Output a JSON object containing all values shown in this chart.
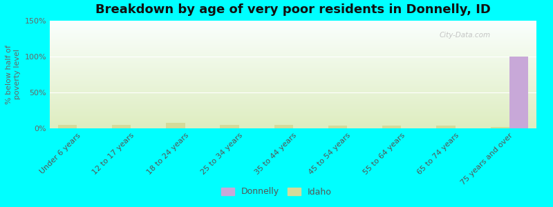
{
  "title": "Breakdown by age of very poor residents in Donnelly, ID",
  "ylabel": "% below half of\npoverty level",
  "categories": [
    "Under 6 years",
    "12 to 17 years",
    "18 to 24 years",
    "25 to 34 years",
    "35 to 44 years",
    "45 to 54 years",
    "55 to 64 years",
    "65 to 74 years",
    "75 years and over"
  ],
  "donnelly_values": [
    0,
    0,
    0,
    0,
    0,
    0,
    0,
    0,
    100
  ],
  "idaho_values": [
    5,
    5,
    8,
    5,
    5,
    4,
    4,
    4,
    2
  ],
  "donnelly_color": "#c8a8d8",
  "idaho_color": "#d4db9a",
  "background_color": "#00ffff",
  "gradient_top": "#fafffe",
  "gradient_bottom": "#deedc0",
  "ylim": [
    0,
    150
  ],
  "yticks": [
    0,
    50,
    100,
    150
  ],
  "ytick_labels": [
    "0%",
    "50%",
    "100%",
    "150%"
  ],
  "bar_width": 0.35,
  "title_fontsize": 13,
  "axis_label_fontsize": 8,
  "tick_fontsize": 8,
  "legend_fontsize": 9,
  "watermark": "City-Data.com"
}
